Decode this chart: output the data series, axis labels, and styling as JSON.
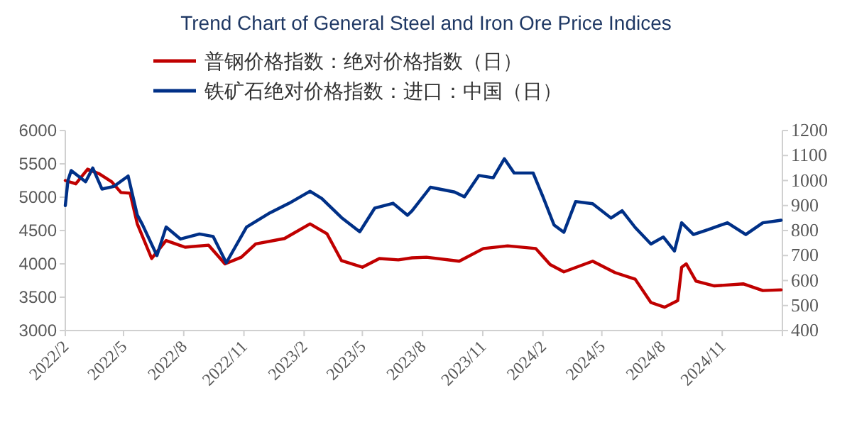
{
  "chart_data": {
    "type": "line",
    "title": "Trend Chart of General Steel and Iron Ore Price Indices",
    "legend": "top",
    "grid": false,
    "marker": "none",
    "line_style": "solid",
    "xlim": [
      "2022-02-01",
      "2025-02-01"
    ],
    "xticks": [
      {
        "value": "2022-02-01",
        "label": "2022/2"
      },
      {
        "value": "2022-05-01",
        "label": "2022/5"
      },
      {
        "value": "2022-08-01",
        "label": "2022/8"
      },
      {
        "value": "2022-11-01",
        "label": "2022/11"
      },
      {
        "value": "2023-02-01",
        "label": "2023/2"
      },
      {
        "value": "2023-05-01",
        "label": "2023/5"
      },
      {
        "value": "2023-08-01",
        "label": "2023/8"
      },
      {
        "value": "2023-11-01",
        "label": "2023/11"
      },
      {
        "value": "2024-02-01",
        "label": "2024/2"
      },
      {
        "value": "2024-05-01",
        "label": "2024/5"
      },
      {
        "value": "2024-08-01",
        "label": "2024/8"
      },
      {
        "value": "2024-11-01",
        "label": "2024/11"
      },
      {
        "value": "2025-02-01",
        "label": null
      }
    ],
    "ylim": [
      3000,
      6000
    ],
    "yticks": [
      3000,
      3500,
      4000,
      4500,
      5000,
      5500,
      6000
    ],
    "y2lim": [
      400,
      1200
    ],
    "y2ticks": [
      400,
      500,
      600,
      700,
      800,
      900,
      1000,
      1100,
      1200
    ],
    "series": [
      {
        "name": "普钢价格指数：绝对价格指数（日）",
        "color": "#c00000",
        "x": [
          "2022-02-01",
          "2022-02-17",
          "2022-03-07",
          "2022-03-25",
          "2022-04-13",
          "2022-04-27",
          "2022-05-11",
          "2022-05-22",
          "2022-06-13",
          "2022-07-05",
          "2022-08-03",
          "2022-09-08",
          "2022-10-03",
          "2022-10-28",
          "2022-11-19",
          "2023-01-02",
          "2023-02-10",
          "2023-03-08",
          "2023-03-30",
          "2023-05-01",
          "2023-05-27",
          "2023-06-25",
          "2023-07-16",
          "2023-08-07",
          "2023-09-26",
          "2023-11-02",
          "2023-12-09",
          "2024-01-21",
          "2024-02-12",
          "2024-03-04",
          "2024-04-17",
          "2024-05-21",
          "2024-06-21",
          "2024-07-15",
          "2024-08-05",
          "2024-08-25",
          "2024-08-31",
          "2024-09-07",
          "2024-09-22",
          "2024-10-20",
          "2024-12-03",
          "2025-01-02",
          "2025-01-30"
        ],
        "values": [
          5250,
          5200,
          5420,
          5350,
          5230,
          5070,
          5060,
          4600,
          4080,
          4350,
          4250,
          4280,
          4000,
          4100,
          4300,
          4380,
          4600,
          4450,
          4050,
          3950,
          4080,
          4060,
          4090,
          4100,
          4040,
          4230,
          4270,
          4230,
          3990,
          3880,
          4040,
          3870,
          3770,
          3420,
          3350,
          3450,
          3950,
          4000,
          3740,
          3670,
          3700,
          3600,
          3610
        ]
      },
      {
        "name": "铁矿石绝对价格指数：进口：中国（日）",
        "color": "#003087",
        "axis": "y2",
        "x": [
          "2022-02-01",
          "2022-02-05",
          "2022-02-10",
          "2022-03-04",
          "2022-03-15",
          "2022-03-29",
          "2022-04-16",
          "2022-05-08",
          "2022-05-22",
          "2022-05-30",
          "2022-06-21",
          "2022-07-05",
          "2022-07-27",
          "2022-08-25",
          "2022-09-15",
          "2022-10-05",
          "2022-11-05",
          "2022-12-11",
          "2023-01-09",
          "2023-02-10",
          "2023-02-28",
          "2023-03-30",
          "2023-04-27",
          "2023-05-20",
          "2023-06-17",
          "2023-07-09",
          "2023-07-16",
          "2023-08-13",
          "2023-09-19",
          "2023-10-04",
          "2023-10-26",
          "2023-11-17",
          "2023-12-04",
          "2023-12-19",
          "2024-01-17",
          "2024-02-01",
          "2024-02-18",
          "2024-03-04",
          "2024-03-22",
          "2024-04-17",
          "2024-05-15",
          "2024-06-01",
          "2024-06-21",
          "2024-07-15",
          "2024-08-03",
          "2024-08-20",
          "2024-08-31",
          "2024-09-18",
          "2024-10-10",
          "2024-11-09",
          "2024-12-07",
          "2025-01-02",
          "2025-01-30"
        ],
        "values": [
          900,
          1000,
          1040,
          995,
          1050,
          966,
          976,
          1018,
          862,
          823,
          700,
          814,
          766,
          786,
          776,
          671,
          814,
          871,
          909,
          957,
          928,
          852,
          795,
          890,
          909,
          861,
          879,
          973,
          954,
          935,
          1020,
          1011,
          1087,
          1030,
          1030,
          935,
          822,
          793,
          916,
          907,
          850,
          879,
          812,
          746,
          774,
          718,
          831,
          784,
          803,
          831,
          784,
          831,
          841
        ]
      }
    ]
  }
}
